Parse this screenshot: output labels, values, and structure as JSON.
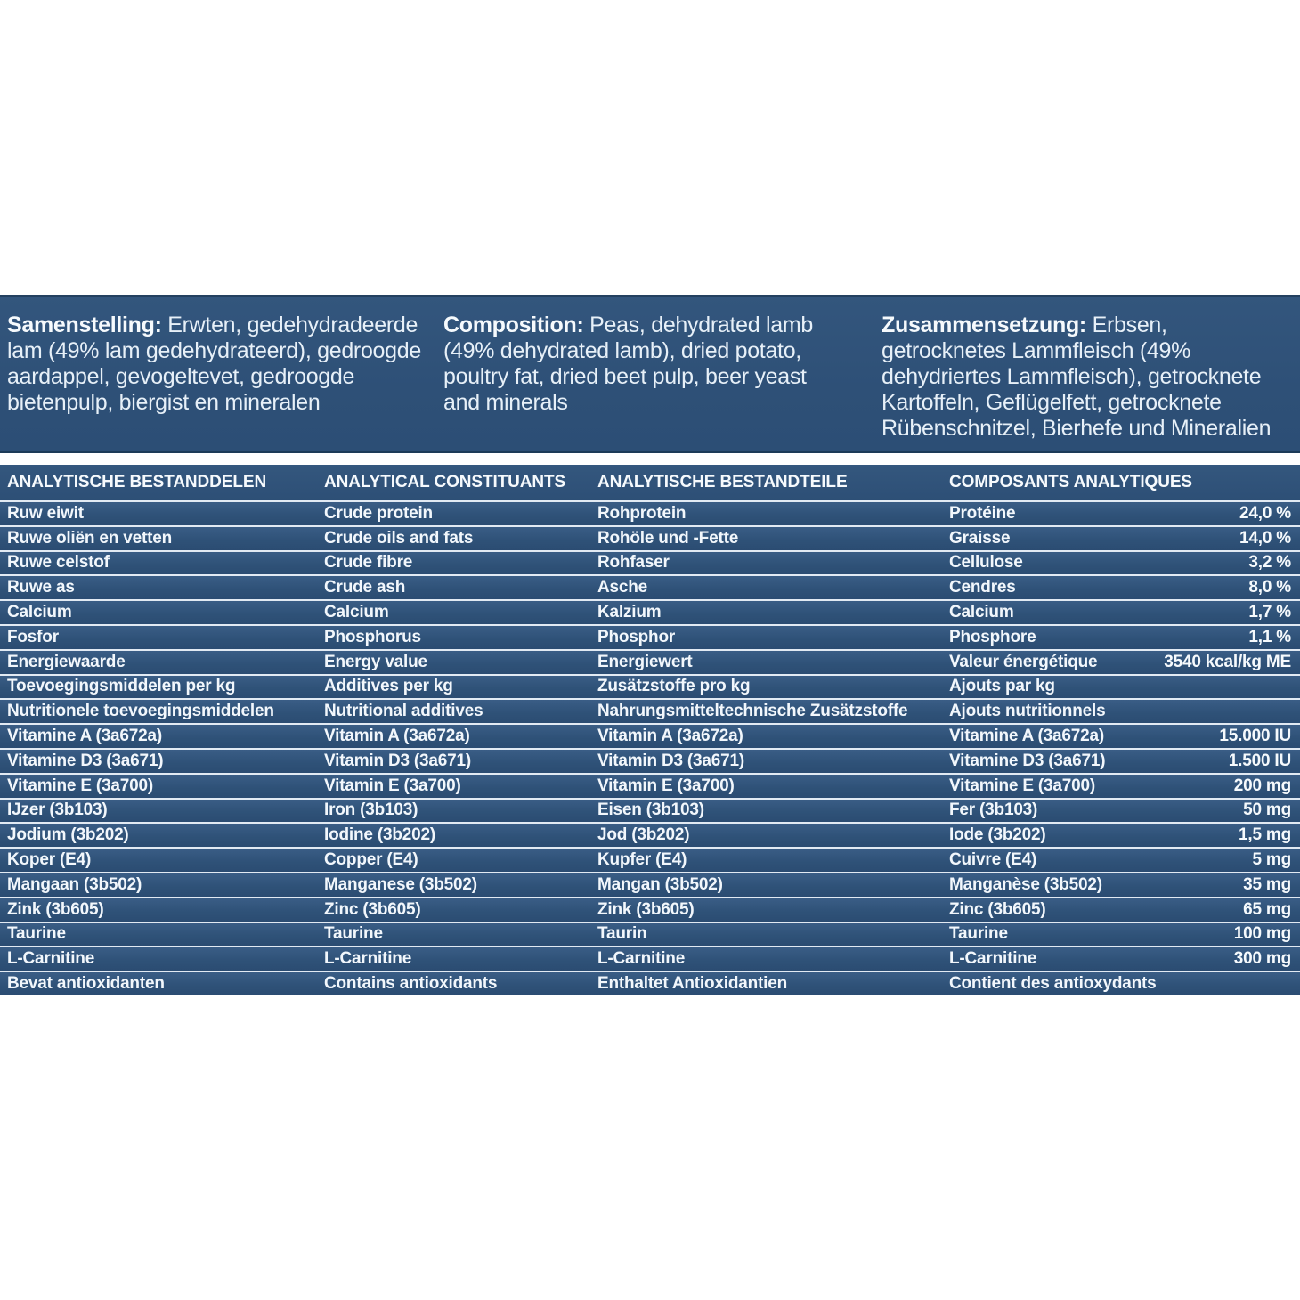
{
  "colors": {
    "panel_blue": "#2F5278",
    "row_gradient_top": "#3A5D86",
    "row_gradient_bottom": "#2B4C72",
    "separator_line": "#E2EAF3",
    "dark_edge": "#1C3A58",
    "text": "#F2F7FC",
    "page_background": "#FFFFFF"
  },
  "composition": {
    "blocks": [
      {
        "lang": "nl",
        "lead": "Samenstelling:",
        "text": "Erwten, gedehydradeerde lam (49% lam gedehydrateerd), gedroogde aardappel, gevogeltevet, gedroogde bietenpulp, biergist en mineralen"
      },
      {
        "lang": "en",
        "lead": "Composition:",
        "text": "Peas, dehydrated lamb (49% dehydrated lamb), dried potato, poultry fat, dried beet pulp, beer yeast and minerals"
      },
      {
        "lang": "de",
        "lead": "Zusammensetzung:",
        "text": "Erbsen, getrocknetes Lammfleisch (49% dehydriertes Lammfleisch), getrocknete Kartoffeln, Geflügelfett, getrocknete Rübenschnitzel, Bierhefe und Mineralien"
      }
    ]
  },
  "table": {
    "headers": [
      "ANALYTISCHE BESTANDDELEN",
      "ANALYTICAL CONSTITUANTS",
      "ANALYTISCHE BESTANDTEILE",
      "COMPOSANTS ANALYTIQUES"
    ],
    "rows": [
      {
        "nl": "Ruw eiwit",
        "en": "Crude protein",
        "de": "Rohprotein",
        "fr": "Protéine",
        "value": "24,0 %"
      },
      {
        "nl": "Ruwe oliën en vetten",
        "en": "Crude oils and fats",
        "de": "Rohöle und -Fette",
        "fr": "Graisse",
        "value": "14,0 %"
      },
      {
        "nl": "Ruwe celstof",
        "en": "Crude fibre",
        "de": "Rohfaser",
        "fr": "Cellulose",
        "value": "3,2 %"
      },
      {
        "nl": "Ruwe as",
        "en": "Crude ash",
        "de": "Asche",
        "fr": "Cendres",
        "value": "8,0 %"
      },
      {
        "nl": "Calcium",
        "en": "Calcium",
        "de": "Kalzium",
        "fr": "Calcium",
        "value": "1,7 %"
      },
      {
        "nl": "Fosfor",
        "en": "Phosphorus",
        "de": "Phosphor",
        "fr": "Phosphore",
        "value": "1,1 %"
      },
      {
        "nl": "Energiewaarde",
        "en": "Energy value",
        "de": "Energiewert",
        "fr": "Valeur énergétique",
        "value": "3540 kcal/kg ME"
      },
      {
        "nl": "Toevoegingsmiddelen per kg",
        "en": "Additives per kg",
        "de": "Zusätzstoffe pro kg",
        "fr": "Ajouts par kg",
        "value": ""
      },
      {
        "nl": "Nutritionele toevoegingsmiddelen",
        "en": "Nutritional additives",
        "de": "Nahrungsmitteltechnische Zusätzstoffe",
        "fr": "Ajouts nutritionnels",
        "value": ""
      },
      {
        "nl": "Vitamine A (3a672a)",
        "en": "Vitamin A (3a672a)",
        "de": "Vitamin A (3a672a)",
        "fr": "Vitamine A (3a672a)",
        "value": "15.000 IU"
      },
      {
        "nl": "Vitamine D3 (3a671)",
        "en": "Vitamin D3 (3a671)",
        "de": "Vitamin D3 (3a671)",
        "fr": "Vitamine D3 (3a671)",
        "value": "1.500 IU"
      },
      {
        "nl": "Vitamine E (3a700)",
        "en": "Vitamin E (3a700)",
        "de": "Vitamin E (3a700)",
        "fr": "Vitamine E (3a700)",
        "value": "200 mg"
      },
      {
        "nl": "IJzer (3b103)",
        "en": "Iron (3b103)",
        "de": "Eisen (3b103)",
        "fr": "Fer (3b103)",
        "value": "50 mg"
      },
      {
        "nl": "Jodium (3b202)",
        "en": "Iodine (3b202)",
        "de": "Jod (3b202)",
        "fr": "Iode (3b202)",
        "value": "1,5 mg"
      },
      {
        "nl": "Koper (E4)",
        "en": "Copper (E4)",
        "de": "Kupfer (E4)",
        "fr": "Cuivre (E4)",
        "value": "5 mg"
      },
      {
        "nl": "Mangaan (3b502)",
        "en": "Manganese (3b502)",
        "de": "Mangan (3b502)",
        "fr": "Manganèse (3b502)",
        "value": "35 mg"
      },
      {
        "nl": "Zink (3b605)",
        "en": "Zinc (3b605)",
        "de": "Zink (3b605)",
        "fr": "Zinc (3b605)",
        "value": "65 mg"
      },
      {
        "nl": "Taurine",
        "en": "Taurine",
        "de": "Taurin",
        "fr": "Taurine",
        "value": "100 mg"
      },
      {
        "nl": "L-Carnitine",
        "en": "L-Carnitine",
        "de": "L-Carnitine",
        "fr": "L-Carnitine",
        "value": "300 mg"
      },
      {
        "nl": "Bevat antioxidanten",
        "en": "Contains antioxidants",
        "de": "Enthaltet Antioxidantien",
        "fr": "Contient des antioxydants",
        "value": ""
      }
    ]
  }
}
